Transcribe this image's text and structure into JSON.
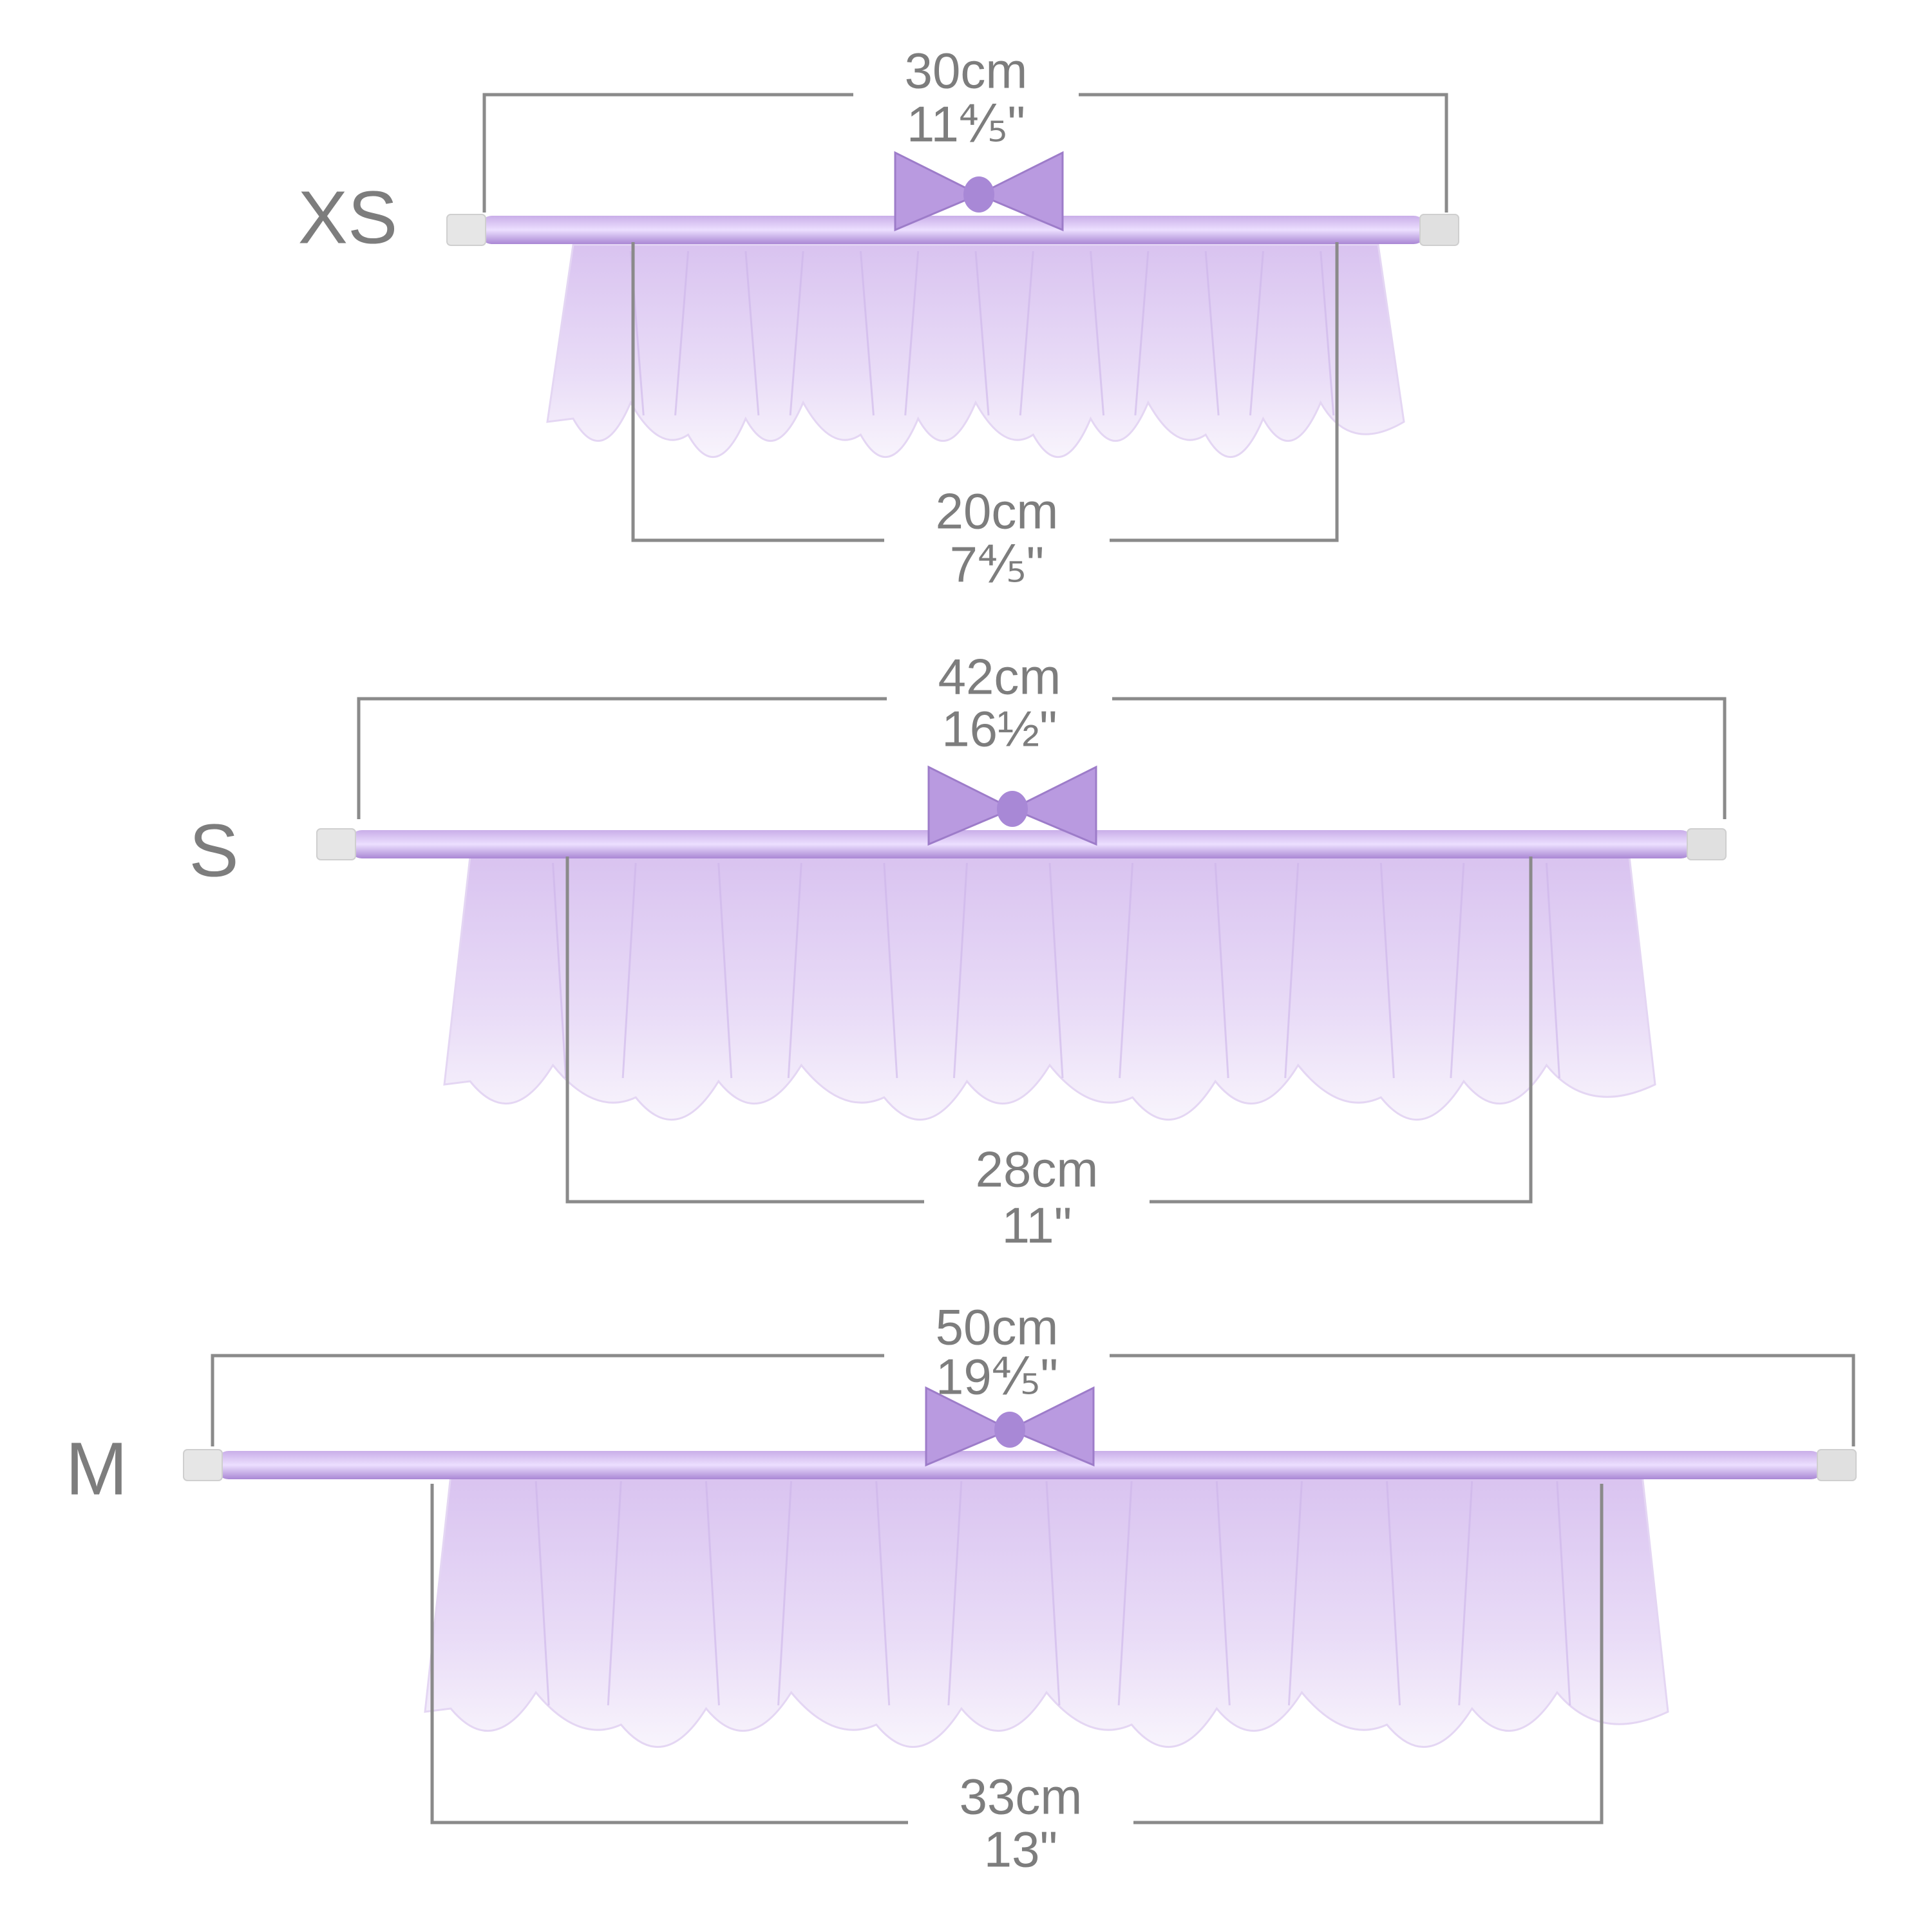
{
  "sizes": [
    {
      "label": "XS",
      "top": {
        "cm": "30cm",
        "inch": "11⅘\""
      },
      "bottom": {
        "cm": "20cm",
        "inch": "7⅘\""
      }
    },
    {
      "label": "S",
      "top": {
        "cm": "42cm",
        "inch": "16½\""
      },
      "bottom": {
        "cm": "28cm",
        "inch": "11\""
      }
    },
    {
      "label": "M",
      "top": {
        "cm": "50cm",
        "inch": "19⅘\""
      },
      "bottom": {
        "cm": "33cm",
        "inch": "13\""
      }
    }
  ]
}
